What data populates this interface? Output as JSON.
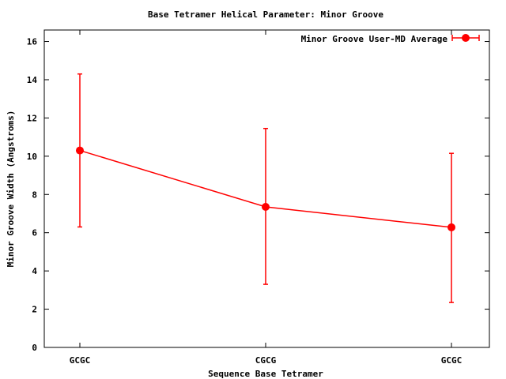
{
  "chart_data": {
    "type": "line",
    "title": "Base Tetramer Helical Parameter: Minor Groove",
    "xlabel": "Sequence Base Tetramer",
    "ylabel": "Minor Groove Width (Angstroms)",
    "categories": [
      "GCGC",
      "CGCG",
      "GCGC"
    ],
    "ylim": [
      0,
      16.6
    ],
    "yticks": [
      0,
      2,
      4,
      6,
      8,
      10,
      12,
      14,
      16
    ],
    "ytick_labels": [
      "0",
      "2",
      "4",
      "6",
      "8",
      "10",
      "12",
      "14",
      "16"
    ],
    "grid": false,
    "legend_position": "top-right",
    "series": [
      {
        "name": "Minor Groove User-MD Average",
        "color": "#ff0000",
        "values": [
          10.3,
          7.35,
          6.28
        ],
        "error_low": [
          6.3,
          3.3,
          2.35
        ],
        "error_high": [
          14.3,
          11.45,
          10.15
        ]
      }
    ]
  }
}
